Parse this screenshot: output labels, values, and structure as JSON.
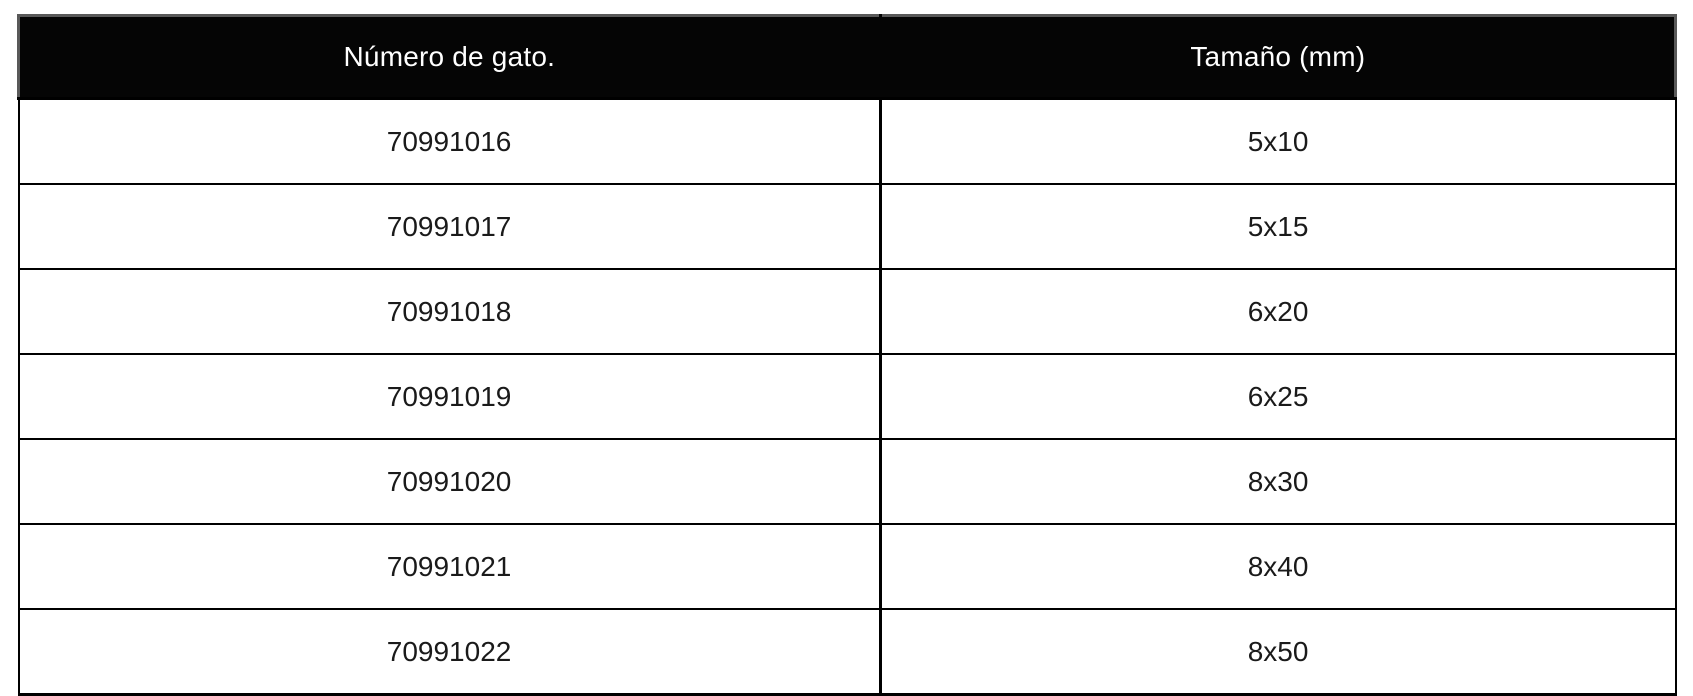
{
  "page": {
    "background": "#ffffff"
  },
  "table": {
    "header": {
      "bg": "#050505",
      "text_color": "#ffffff",
      "border_color": "#595959",
      "columns": [
        "Número de gato.",
        "Tamaño (mm)"
      ]
    },
    "body": {
      "border_color": "#000000",
      "text_color": "#1a1a1a"
    },
    "rows": [
      {
        "numero_de_gato": "70991016",
        "tamano_mm": "5x10"
      },
      {
        "numero_de_gato": "70991017",
        "tamano_mm": "5x15"
      },
      {
        "numero_de_gato": "70991018",
        "tamano_mm": "6x20"
      },
      {
        "numero_de_gato": "70991019",
        "tamano_mm": "6x25"
      },
      {
        "numero_de_gato": "70991020",
        "tamano_mm": "8x30"
      },
      {
        "numero_de_gato": "70991021",
        "tamano_mm": "8x40"
      },
      {
        "numero_de_gato": "70991022",
        "tamano_mm": "8x50"
      }
    ]
  }
}
